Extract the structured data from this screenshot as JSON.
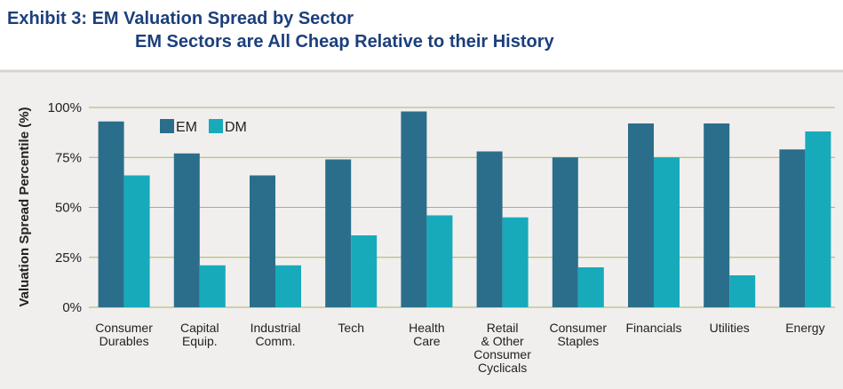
{
  "chart_data": {
    "type": "bar",
    "title": "Exhibit 3: EM Valuation Spread by Sector",
    "subtitle": "EM Sectors are All Cheap Relative to their History",
    "y_label": "Valuation Spread Percentile (%)",
    "categories": [
      "Consumer\nDurables",
      "Capital\nEquip.",
      "Industrial\nComm.",
      "Tech",
      "Health\nCare",
      "Retail\n& Other\nConsumer\nCyclicals",
      "Consumer\nStaples",
      "Financials",
      "Utilities",
      "Energy"
    ],
    "series": [
      {
        "name": "EM",
        "color": "#2b6e8b",
        "values": [
          93,
          77,
          66,
          74,
          98,
          78,
          75,
          92,
          92,
          79
        ]
      },
      {
        "name": "DM",
        "color": "#17aabb",
        "values": [
          66,
          21,
          21,
          36,
          46,
          45,
          20,
          75,
          16,
          88
        ]
      }
    ],
    "ylim": [
      0,
      100
    ],
    "yticks": [
      {
        "value": 0,
        "label": "0%"
      },
      {
        "value": 25,
        "label": "25%"
      },
      {
        "value": 50,
        "label": "50%"
      },
      {
        "value": 75,
        "label": "75%"
      },
      {
        "value": 100,
        "label": "100%"
      }
    ],
    "grid": true,
    "legend": "top-left"
  }
}
